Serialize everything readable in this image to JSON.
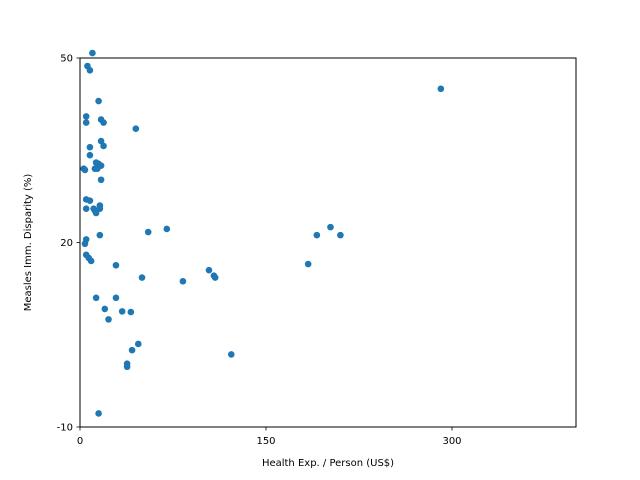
{
  "chart_data": {
    "type": "scatter",
    "title": "",
    "xlabel": "Health Exp. / Person (US$)",
    "ylabel": "Measles Imm. Disparity (%)",
    "xlim": [
      0,
      400
    ],
    "ylim": [
      -10,
      50
    ],
    "xticks": [
      0,
      150,
      300
    ],
    "yticks": [
      -10,
      20,
      50
    ],
    "grid": false,
    "color": "#1f77b4",
    "points": [
      [
        10,
        50.8
      ],
      [
        6,
        48.7
      ],
      [
        8,
        48.0
      ],
      [
        15,
        43.0
      ],
      [
        5,
        40.5
      ],
      [
        5,
        39.5
      ],
      [
        17,
        40.0
      ],
      [
        19,
        39.5
      ],
      [
        45,
        38.5
      ],
      [
        17,
        36.5
      ],
      [
        19,
        35.7
      ],
      [
        8,
        35.5
      ],
      [
        8,
        34.2
      ],
      [
        13,
        33.0
      ],
      [
        15,
        32.8
      ],
      [
        17,
        32.5
      ],
      [
        3,
        32.0
      ],
      [
        12,
        32.0
      ],
      [
        4,
        31.8
      ],
      [
        14,
        32.0
      ],
      [
        17,
        30.2
      ],
      [
        5,
        27.0
      ],
      [
        8,
        26.8
      ],
      [
        16,
        26.0
      ],
      [
        11,
        25.5
      ],
      [
        12,
        25.2
      ],
      [
        5,
        25.5
      ],
      [
        16,
        25.5
      ],
      [
        13,
        24.8
      ],
      [
        70,
        22.2
      ],
      [
        55,
        21.7
      ],
      [
        16,
        21.2
      ],
      [
        5,
        20.5
      ],
      [
        4,
        19.8
      ],
      [
        5,
        18.0
      ],
      [
        7,
        17.5
      ],
      [
        9,
        17.0
      ],
      [
        29,
        16.3
      ],
      [
        184,
        16.5
      ],
      [
        104,
        15.5
      ],
      [
        108,
        14.6
      ],
      [
        109,
        14.3
      ],
      [
        50,
        14.3
      ],
      [
        83,
        13.7
      ],
      [
        13,
        11.0
      ],
      [
        29,
        11.0
      ],
      [
        34,
        8.8
      ],
      [
        41,
        8.7
      ],
      [
        20,
        9.2
      ],
      [
        23,
        7.5
      ],
      [
        47,
        3.5
      ],
      [
        42,
        2.5
      ],
      [
        122,
        1.8
      ],
      [
        38,
        -0.2
      ],
      [
        38,
        0.3
      ],
      [
        15,
        -7.8
      ],
      [
        202,
        22.5
      ],
      [
        191,
        21.2
      ],
      [
        210,
        21.2
      ],
      [
        291,
        45.0
      ]
    ]
  }
}
